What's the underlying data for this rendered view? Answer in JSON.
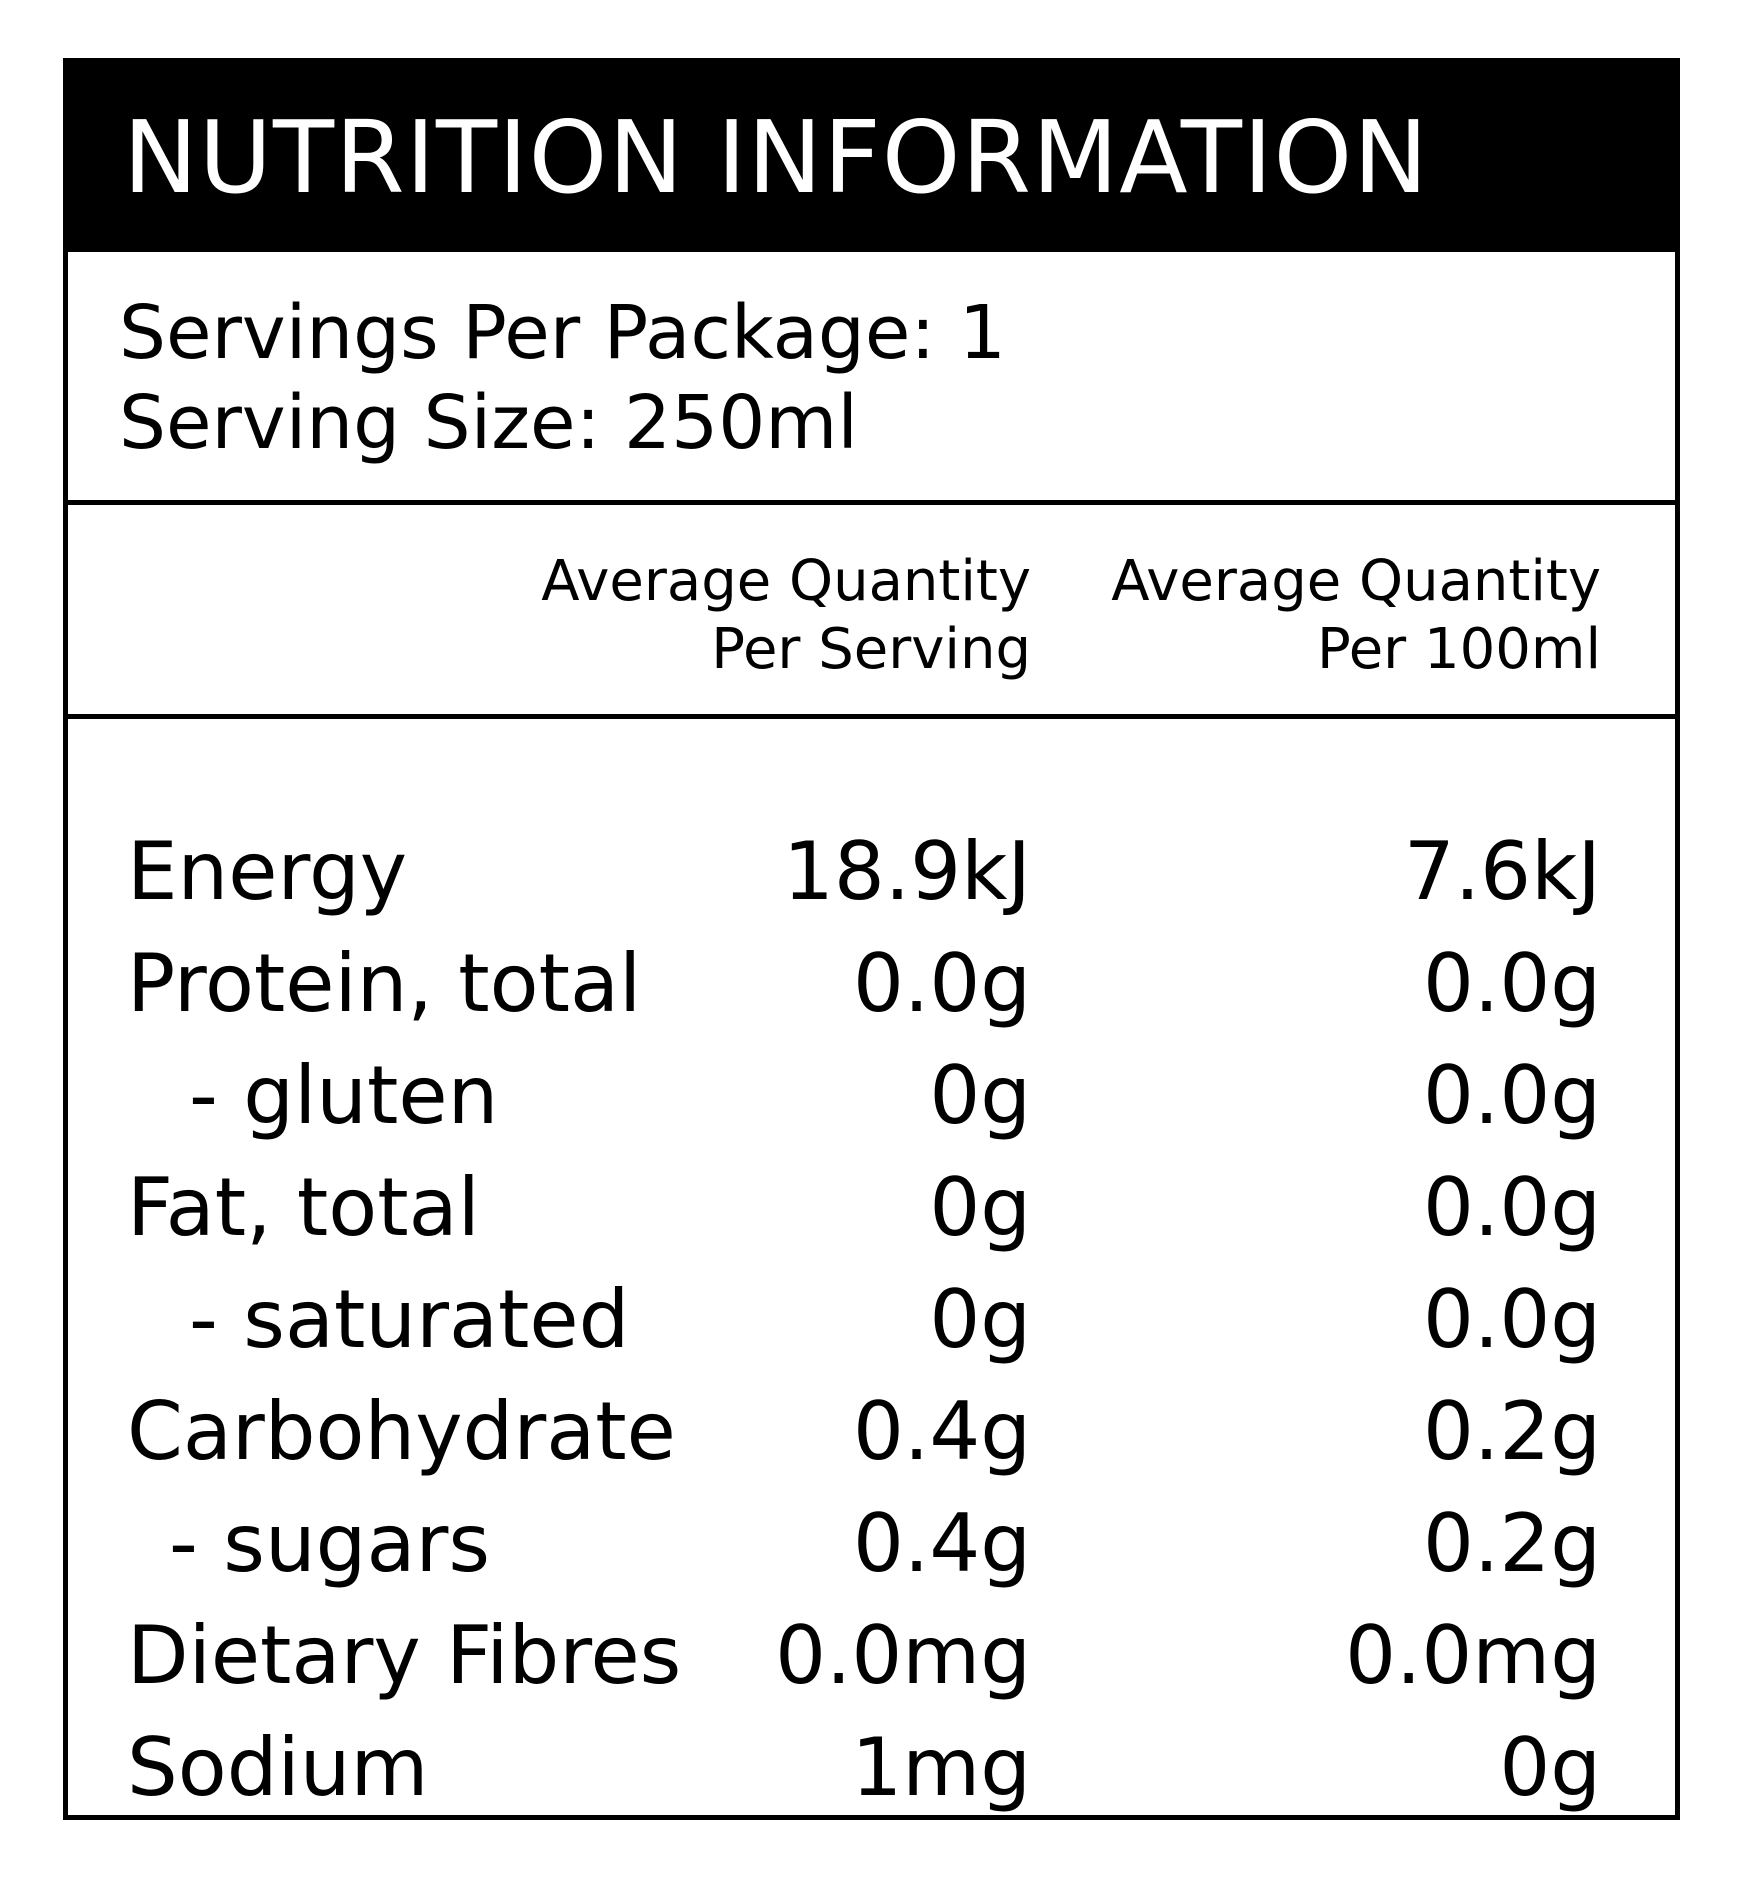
{
  "title": "NUTRITION INFORMATION",
  "servings": {
    "per_package": "Servings Per Package: 1",
    "serving_size": "Serving Size: 250ml"
  },
  "columns": {
    "per_serving": [
      "Average Quantity",
      "Per Serving"
    ],
    "per_100ml": [
      "Average Quantity",
      "Per 100ml"
    ]
  },
  "rows": [
    {
      "name": "Energy",
      "per_serving": "18.9kJ",
      "per_100ml": "7.6kJ"
    },
    {
      "name": "Protein, total",
      "per_serving": "0.0g",
      "per_100ml": "0.0g"
    },
    {
      "name": "- gluten",
      "per_serving": "0g",
      "per_100ml": "0.0g"
    },
    {
      "name": "Fat, total",
      "per_serving": "0g",
      "per_100ml": "0.0g"
    },
    {
      "name": "- saturated",
      "per_serving": "0g",
      "per_100ml": "0.0g"
    },
    {
      "name": "Carbohydrate",
      "per_serving": "0.4g",
      "per_100ml": "0.2g"
    },
    {
      "name": "- sugars",
      "per_serving": "0.4g",
      "per_100ml": "0.2g"
    },
    {
      "name": "Dietary Fibres",
      "per_serving": "0.0mg",
      "per_100ml": "0.0mg"
    },
    {
      "name": "Sodium",
      "per_serving": "1mg",
      "per_100ml": "0g"
    }
  ]
}
